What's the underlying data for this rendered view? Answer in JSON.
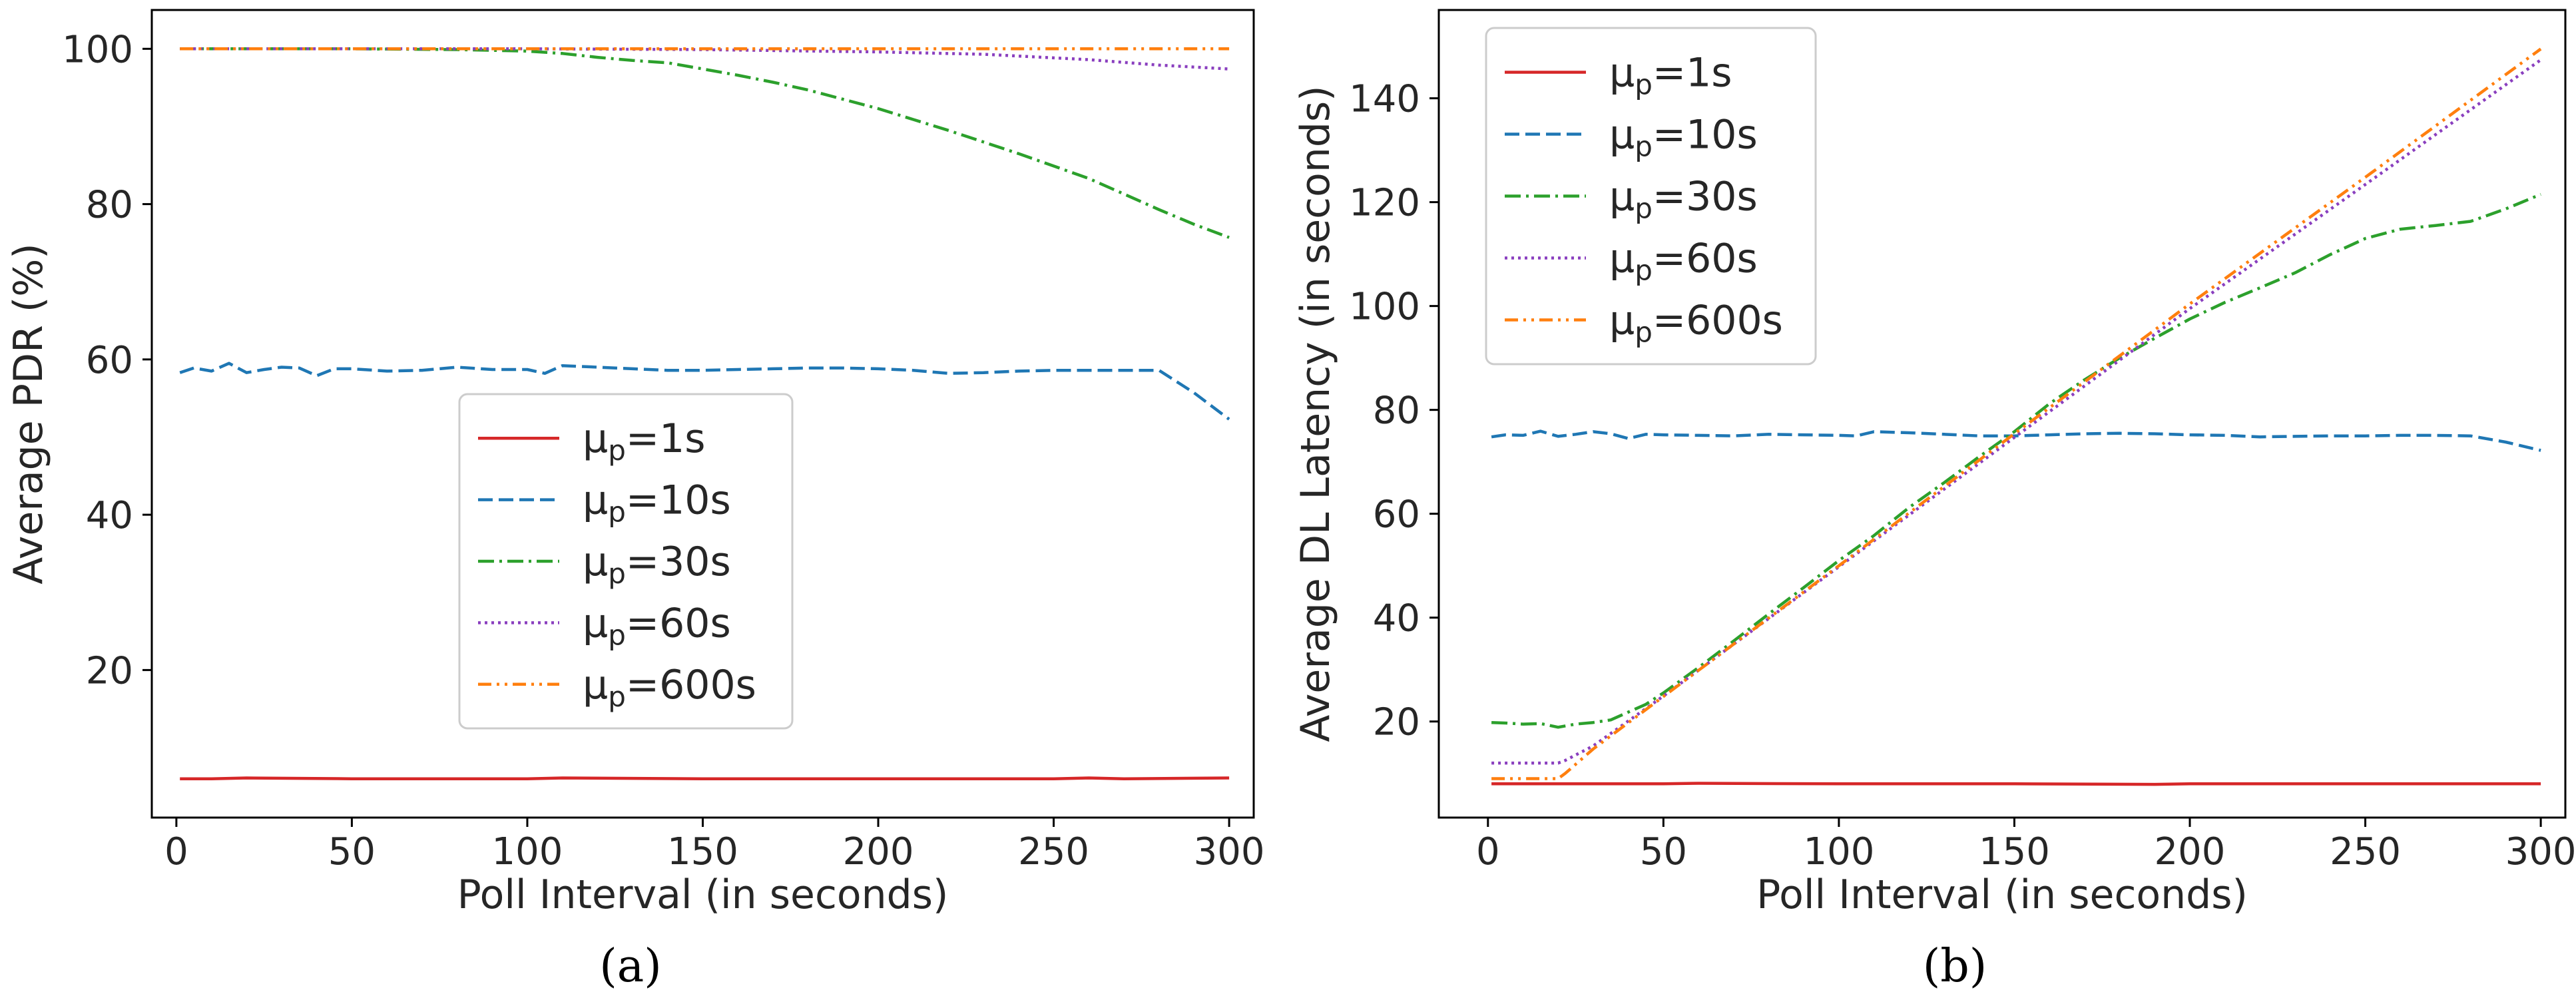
{
  "figure": {
    "captions": [
      "(a)",
      "(b)"
    ]
  },
  "chart_data": [
    {
      "id": "a",
      "type": "line",
      "title": "",
      "xlabel": "Poll Interval (in seconds)",
      "ylabel": "Average PDR (%)",
      "xlim": [
        -7,
        307
      ],
      "ylim": [
        1,
        105
      ],
      "xticks": [
        0,
        50,
        100,
        150,
        200,
        250,
        300
      ],
      "yticks": [
        20,
        40,
        60,
        80,
        100
      ],
      "grid": false,
      "legend_position": "center-left",
      "series": [
        {
          "name": "μp=1s",
          "mu": "μ",
          "sub": "p",
          "suffix": "=1s",
          "color": "#d62728",
          "style": "solid",
          "x": [
            1,
            10,
            20,
            50,
            100,
            110,
            150,
            200,
            250,
            260,
            270,
            300
          ],
          "y": [
            6.0,
            6.0,
            6.1,
            6.0,
            6.0,
            6.1,
            6.0,
            6.0,
            6.0,
            6.1,
            6.0,
            6.1
          ]
        },
        {
          "name": "μp=10s",
          "mu": "μ",
          "sub": "p",
          "suffix": "=10s",
          "color": "#1f77b4",
          "style": "dashed",
          "x": [
            1,
            5,
            10,
            15,
            20,
            25,
            30,
            35,
            40,
            45,
            50,
            60,
            70,
            80,
            90,
            100,
            105,
            110,
            120,
            130,
            140,
            150,
            160,
            170,
            180,
            190,
            200,
            210,
            220,
            230,
            240,
            250,
            260,
            270,
            280,
            290,
            300
          ],
          "y": [
            58.3,
            58.9,
            58.5,
            59.5,
            58.3,
            58.7,
            59.0,
            58.9,
            57.9,
            58.8,
            58.8,
            58.5,
            58.6,
            59.0,
            58.7,
            58.7,
            58.2,
            59.2,
            59.0,
            58.8,
            58.6,
            58.6,
            58.7,
            58.8,
            58.9,
            58.9,
            58.8,
            58.6,
            58.2,
            58.3,
            58.5,
            58.6,
            58.6,
            58.6,
            58.6,
            55.7,
            52.3
          ]
        },
        {
          "name": "μp=30s",
          "mu": "μ",
          "sub": "p",
          "suffix": "=30s",
          "color": "#2ca02c",
          "style": "dashdot",
          "x": [
            1,
            20,
            50,
            80,
            100,
            110,
            120,
            130,
            140,
            150,
            160,
            170,
            180,
            190,
            200,
            210,
            220,
            230,
            240,
            250,
            260,
            270,
            280,
            290,
            300
          ],
          "y": [
            100.0,
            100.0,
            100.0,
            99.9,
            99.7,
            99.4,
            98.9,
            98.5,
            98.2,
            97.4,
            96.6,
            95.7,
            94.7,
            93.5,
            92.3,
            90.9,
            89.5,
            88.0,
            86.5,
            84.9,
            83.3,
            81.3,
            79.3,
            77.4,
            75.7
          ]
        },
        {
          "name": "μp=60s",
          "mu": "μ",
          "sub": "p",
          "suffix": "=60s",
          "color": "#8a3fbf",
          "style": "dotted",
          "x": [
            1,
            50,
            100,
            150,
            200,
            230,
            260,
            280,
            300
          ],
          "y": [
            100.0,
            100.0,
            100.0,
            99.9,
            99.6,
            99.3,
            98.6,
            97.9,
            97.4
          ]
        },
        {
          "name": "μp=600s",
          "mu": "μ",
          "sub": "p",
          "suffix": "=600s",
          "color": "#ff7f0e",
          "style": "dashdotdot",
          "x": [
            1,
            100,
            200,
            300
          ],
          "y": [
            100.0,
            100.0,
            100.0,
            100.0
          ]
        }
      ]
    },
    {
      "id": "b",
      "type": "line",
      "title": "",
      "xlabel": "Poll Interval (in seconds)",
      "ylabel": "Average DL Latency (in seconds)",
      "xlim": [
        -14,
        307
      ],
      "ylim": [
        1.5,
        157
      ],
      "xticks": [
        0,
        50,
        100,
        150,
        200,
        250,
        300
      ],
      "yticks": [
        20,
        40,
        60,
        80,
        100,
        120,
        140
      ],
      "grid": false,
      "legend_position": "upper-left",
      "series": [
        {
          "name": "μp=1s",
          "mu": "μ",
          "sub": "p",
          "suffix": "=1s",
          "color": "#d62728",
          "style": "solid",
          "x": [
            1,
            50,
            60,
            100,
            150,
            190,
            200,
            250,
            300
          ],
          "y": [
            8.0,
            8.0,
            8.1,
            8.0,
            8.0,
            7.9,
            8.0,
            8.0,
            8.0
          ]
        },
        {
          "name": "μp=10s",
          "mu": "μ",
          "sub": "p",
          "suffix": "=10s",
          "color": "#1f77b4",
          "style": "dashed",
          "x": [
            1,
            5,
            10,
            15,
            20,
            25,
            30,
            35,
            40,
            45,
            50,
            60,
            70,
            80,
            90,
            100,
            105,
            110,
            120,
            130,
            140,
            150,
            160,
            170,
            180,
            190,
            200,
            210,
            220,
            230,
            240,
            250,
            260,
            270,
            280,
            290,
            300
          ],
          "y": [
            74.8,
            75.2,
            75.1,
            75.9,
            74.9,
            75.3,
            75.8,
            75.4,
            74.5,
            75.3,
            75.2,
            75.1,
            75.0,
            75.3,
            75.2,
            75.1,
            75.0,
            75.8,
            75.6,
            75.3,
            75.0,
            75.0,
            75.2,
            75.4,
            75.5,
            75.4,
            75.2,
            75.1,
            74.8,
            74.9,
            75.0,
            75.0,
            75.1,
            75.1,
            75.0,
            73.8,
            72.2
          ]
        },
        {
          "name": "μp=30s",
          "mu": "μ",
          "sub": "p",
          "suffix": "=30s",
          "color": "#2ca02c",
          "style": "dashdot",
          "x": [
            1,
            5,
            10,
            15,
            20,
            25,
            30,
            35,
            40,
            45,
            50,
            60,
            70,
            80,
            90,
            100,
            110,
            120,
            130,
            140,
            150,
            160,
            170,
            180,
            190,
            200,
            210,
            220,
            230,
            240,
            250,
            260,
            270,
            280,
            290,
            300
          ],
          "y": [
            19.8,
            19.7,
            19.5,
            19.6,
            18.9,
            19.5,
            19.8,
            20.3,
            21.8,
            23.3,
            25.5,
            30.4,
            35.5,
            40.7,
            45.8,
            51.0,
            55.8,
            61.2,
            66.0,
            71.0,
            75.8,
            81.2,
            85.8,
            90.0,
            93.8,
            97.5,
            100.7,
            103.5,
            106.4,
            109.9,
            113.0,
            114.8,
            115.5,
            116.3,
            118.7,
            121.5
          ]
        },
        {
          "name": "μp=60s",
          "mu": "μ",
          "sub": "p",
          "suffix": "=60s",
          "color": "#8a3fbf",
          "style": "dotted",
          "x": [
            1,
            10,
            20,
            22,
            30,
            50,
            100,
            150,
            200,
            250,
            300
          ],
          "y": [
            12.0,
            12.0,
            12.0,
            12.5,
            15.3,
            24.9,
            49.8,
            74.7,
            99.5,
            123.4,
            147.4
          ]
        },
        {
          "name": "μp=600s",
          "mu": "μ",
          "sub": "p",
          "suffix": "=600s",
          "color": "#ff7f0e",
          "style": "dashdotdot",
          "x": [
            1,
            10,
            20,
            22,
            30,
            50,
            100,
            150,
            200,
            250,
            300
          ],
          "y": [
            9.0,
            9.0,
            9.0,
            10.0,
            14.7,
            24.8,
            50.0,
            75.4,
            100.4,
            124.8,
            149.5
          ]
        }
      ]
    }
  ]
}
